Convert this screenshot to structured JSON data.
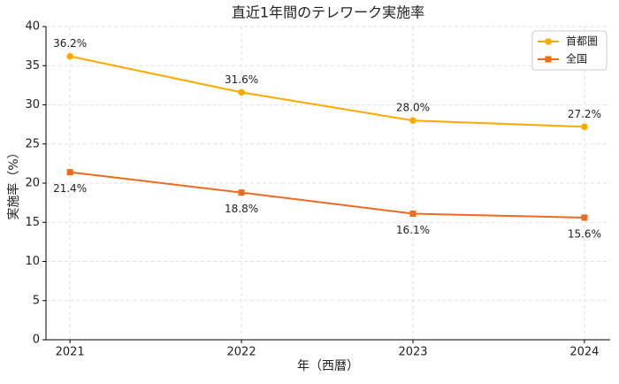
{
  "chart_data": {
    "type": "line",
    "title": "直近1年間のテレワーク実施率",
    "xlabel": "年（西暦）",
    "ylabel": "実施率（%）",
    "x": [
      2021,
      2022,
      2023,
      2024
    ],
    "xlim": [
      2020.86,
      2024.15
    ],
    "xticks": [
      2021,
      2022,
      2023,
      2024
    ],
    "ylim": [
      0,
      40
    ],
    "yticks": [
      0,
      5,
      10,
      15,
      20,
      25,
      30,
      35,
      40
    ],
    "grid": true,
    "legend": "upper right",
    "series": [
      {
        "name": "首都圏",
        "color": "#ffaa00",
        "marker": "circle",
        "values": [
          36.2,
          31.6,
          28.0,
          27.2
        ],
        "value_labels": [
          "36.2%",
          "31.6%",
          "28.0%",
          "27.2%"
        ]
      },
      {
        "name": "全国",
        "color": "#ee6b1e",
        "marker": "square",
        "values": [
          21.4,
          18.8,
          16.1,
          15.6
        ],
        "value_labels": [
          "21.4%",
          "18.8%",
          "16.1%",
          "15.6%"
        ]
      }
    ]
  }
}
